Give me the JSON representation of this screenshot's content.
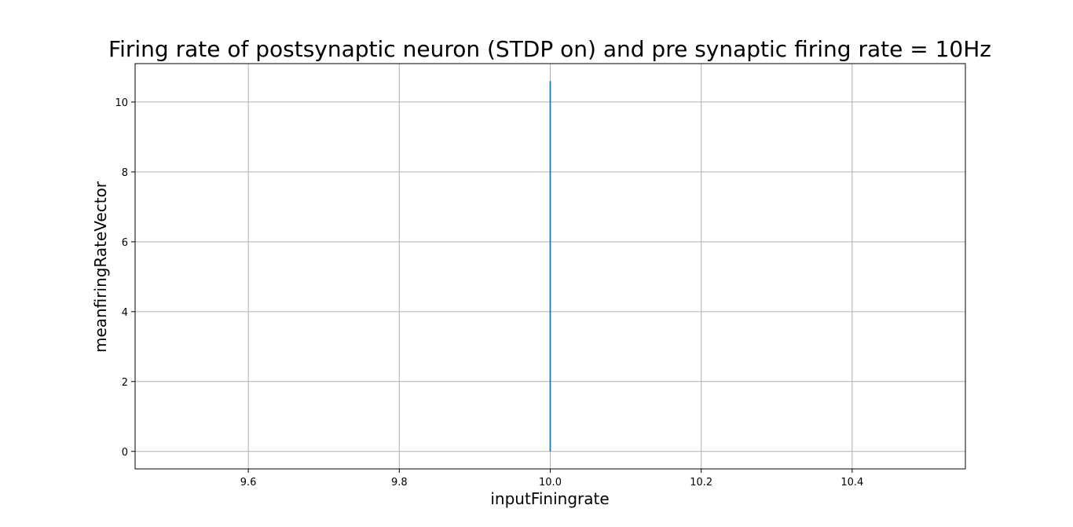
{
  "chart_data": {
    "type": "line",
    "title": "Firing rate of postsynaptic neuron (STDP on) and pre synaptic firing rate = 10Hz",
    "xlabel": "inputFiningrate",
    "ylabel": "meanfiringRateVector",
    "xlim": [
      9.45,
      10.55
    ],
    "ylim": [
      -0.5,
      11.1
    ],
    "x_ticks": [
      9.6,
      9.8,
      10.0,
      10.2,
      10.4
    ],
    "x_tick_labels": [
      "9.6",
      "9.8",
      "10.0",
      "10.2",
      "10.4"
    ],
    "y_ticks": [
      0,
      2,
      4,
      6,
      8,
      10
    ],
    "y_tick_labels": [
      "0",
      "2",
      "4",
      "6",
      "8",
      "10"
    ],
    "grid": true,
    "series": [
      {
        "color": "#1f77b4",
        "x": [
          10.0,
          10.0
        ],
        "y": [
          0.0,
          10.6
        ]
      }
    ]
  }
}
